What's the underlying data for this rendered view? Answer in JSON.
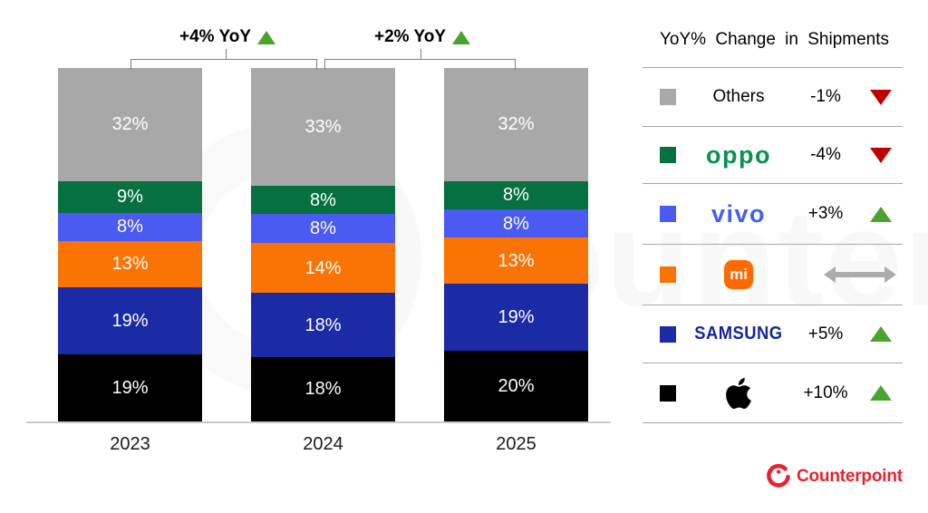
{
  "chart_data": {
    "type": "bar",
    "variant": "stacked-100-percent",
    "title": "",
    "categories": [
      "2023",
      "2024",
      "2025"
    ],
    "unit": "%",
    "stack_order": "top-to-bottom",
    "series": [
      {
        "name": "Others",
        "color": "#a8a8a8",
        "values": [
          32,
          33,
          32
        ]
      },
      {
        "name": "OPPO",
        "color": "#067040",
        "values": [
          9,
          8,
          8
        ]
      },
      {
        "name": "vivo",
        "color": "#4a5af2",
        "values": [
          8,
          8,
          8
        ]
      },
      {
        "name": "Xiaomi",
        "color": "#fa7305",
        "values": [
          13,
          14,
          13
        ]
      },
      {
        "name": "Samsung",
        "color": "#1b2ba5",
        "values": [
          19,
          18,
          19
        ]
      },
      {
        "name": "Apple",
        "color": "#000000",
        "values": [
          19,
          18,
          20
        ]
      }
    ],
    "annotations": [
      {
        "label": "+4% YoY",
        "direction": "up",
        "between": [
          "2023",
          "2024"
        ]
      },
      {
        "label": "+2% YoY",
        "direction": "up",
        "between": [
          "2024",
          "2025"
        ]
      }
    ],
    "legend_position": "right",
    "grid": false,
    "ylim": [
      0,
      100
    ]
  },
  "legend": {
    "title": "YoY% Change in Shipments",
    "rows": [
      {
        "brand": "Others",
        "change": "-1%",
        "direction": "down"
      },
      {
        "brand": "OPPO",
        "change": "-4%",
        "direction": "down"
      },
      {
        "brand": "vivo",
        "change": "+3%",
        "direction": "up"
      },
      {
        "brand": "Xiaomi",
        "logo_text": "mi",
        "change": "",
        "direction": "flat"
      },
      {
        "brand": "SAMSUNG",
        "change": "+5%",
        "direction": "up"
      },
      {
        "brand": "Apple",
        "change": "+10%",
        "direction": "up"
      }
    ]
  },
  "branding": {
    "logo_text": "Counterpoint"
  },
  "watermark": {
    "text": "counterpoint"
  },
  "colors": {
    "up_green": "#4ba32d",
    "down_red": "#c00000",
    "flat_gray": "#ababab",
    "brand_red": "#e8212d",
    "oppo_logo_green": "#0a9150",
    "vivo_logo_blue": "#415ff0",
    "samsung_logo_navy": "#15279e",
    "xiaomi_logo_orange": "#ff6900",
    "axis_line_gray": "#c9c9c9"
  }
}
